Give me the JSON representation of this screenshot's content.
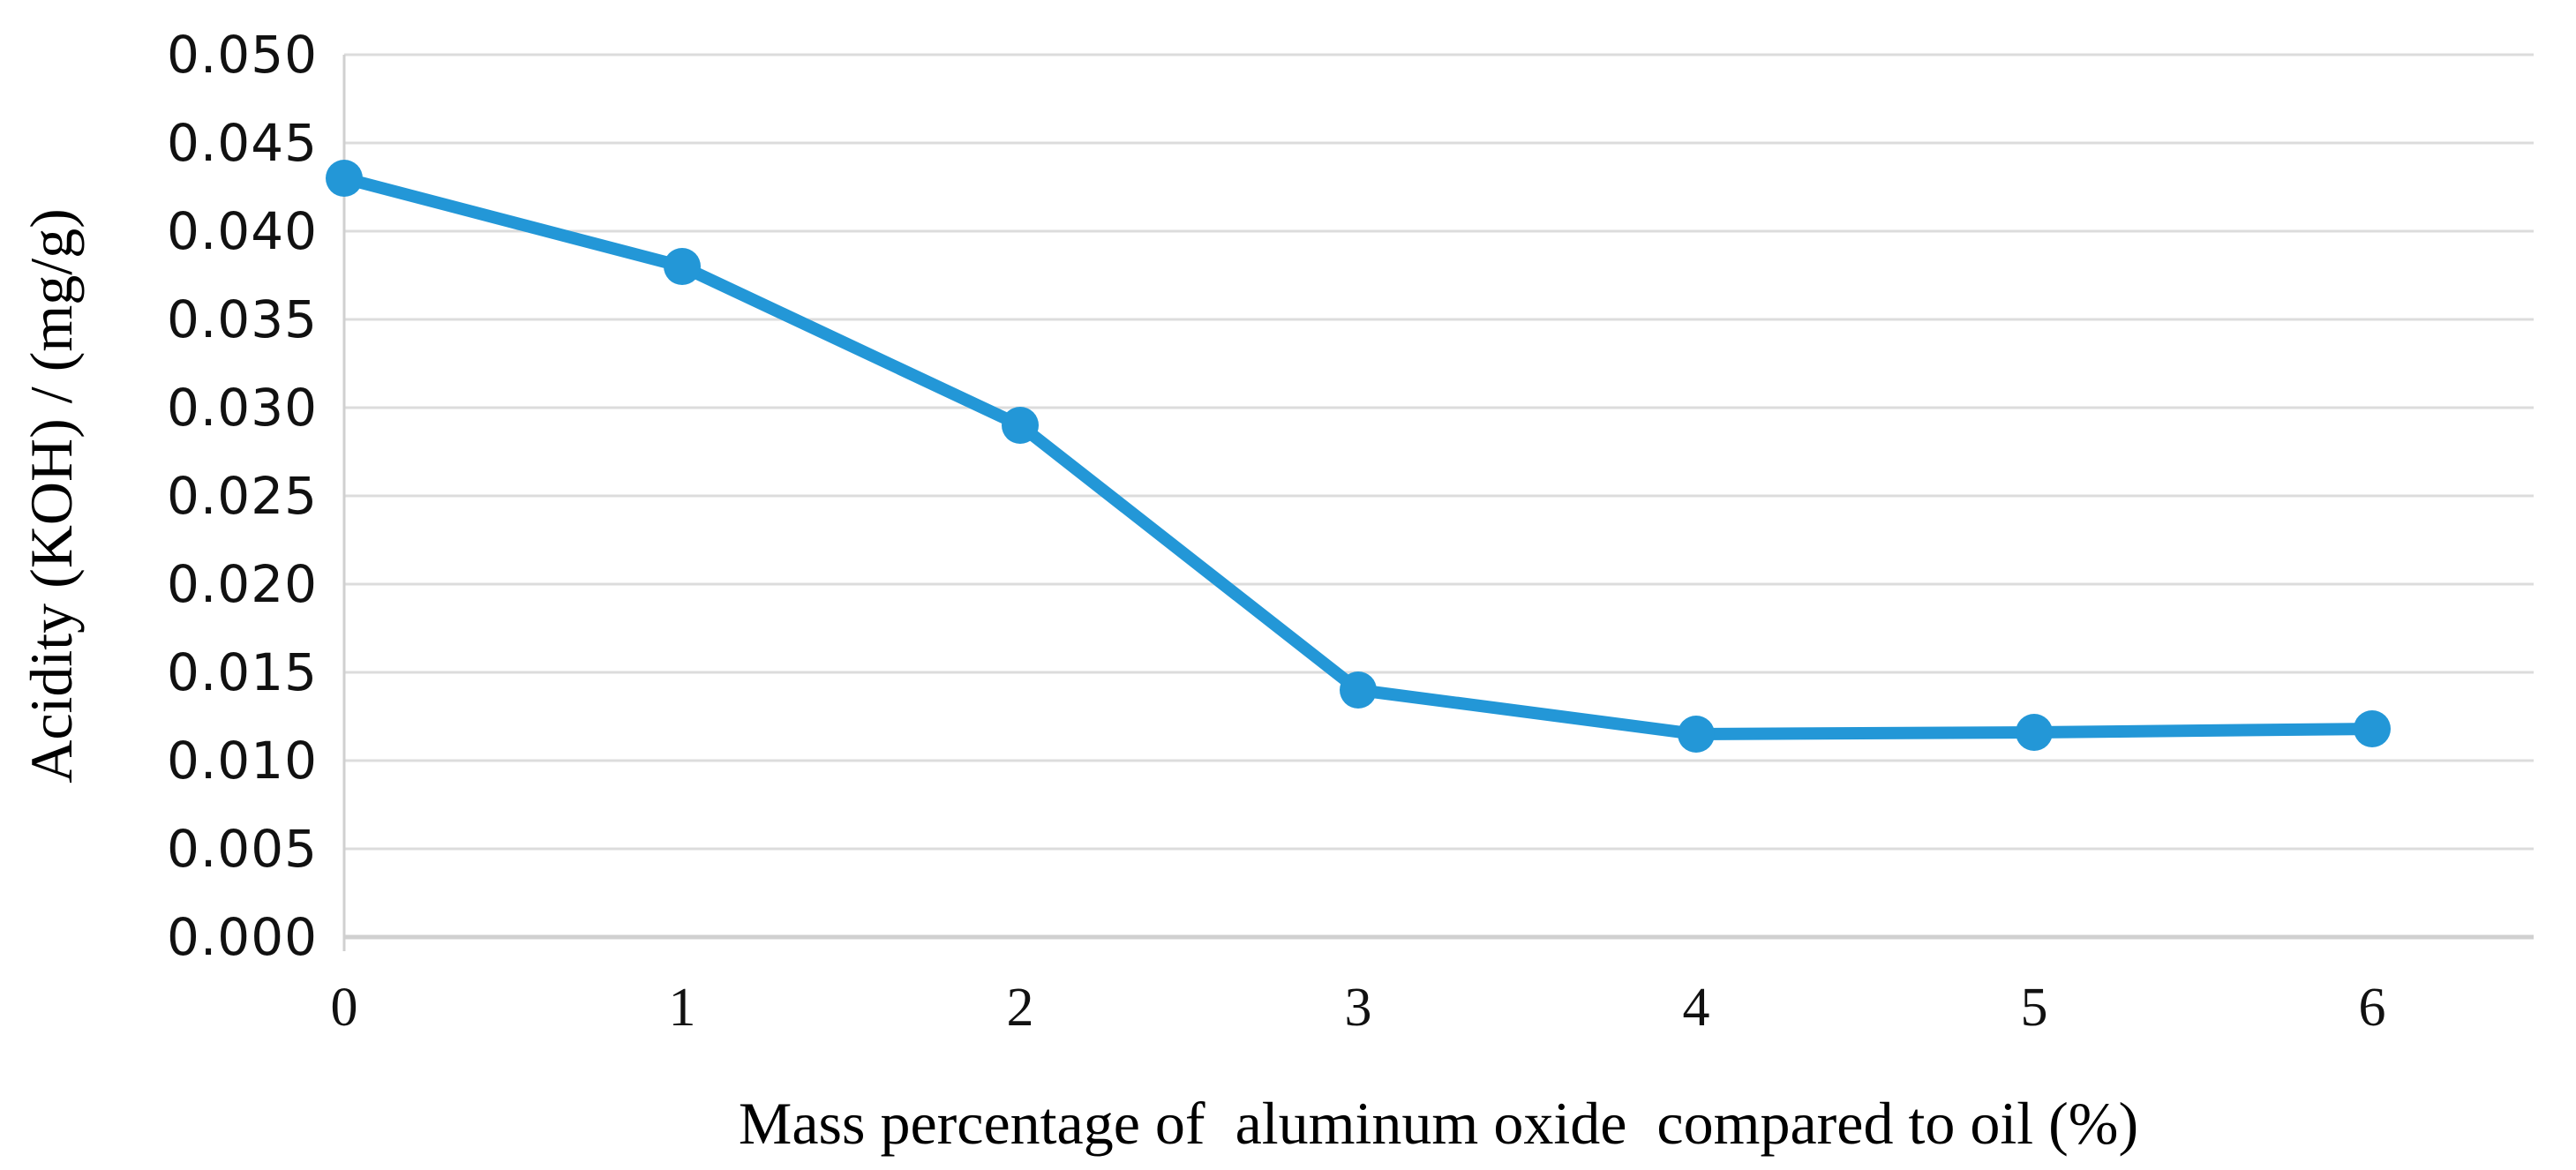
{
  "figure": {
    "background": "#ffffff"
  },
  "chart_data": {
    "type": "line",
    "title": "",
    "xlabel": "Mass percentage of  aluminum oxide  compared to oil (%)",
    "ylabel": "Acidity (KOH) / (mg/g)",
    "x": [
      0,
      1,
      2,
      3,
      4,
      5,
      6
    ],
    "series": [
      {
        "name": "acidity",
        "values": [
          0.043,
          0.038,
          0.029,
          0.014,
          0.0115,
          0.0116,
          0.0118
        ]
      }
    ],
    "ylim": [
      0.0,
      0.05
    ],
    "ytick_step": 0.005,
    "ytick_labels": [
      "0.050",
      "0.045",
      "0.040",
      "0.035",
      "0.030",
      "0.025",
      "0.020",
      "0.015",
      "0.010",
      "0.005",
      "0.000"
    ],
    "xtick_labels": [
      "0",
      "1",
      "2",
      "3",
      "4",
      "5",
      "6"
    ],
    "grid": "horizontal",
    "legend": "none",
    "marker": "circle",
    "colors": {
      "line": "#2397D7",
      "marker": "#2397D7",
      "grid": "#DCDCDC",
      "axis": "#D0D0D0",
      "text": "#000000"
    }
  }
}
